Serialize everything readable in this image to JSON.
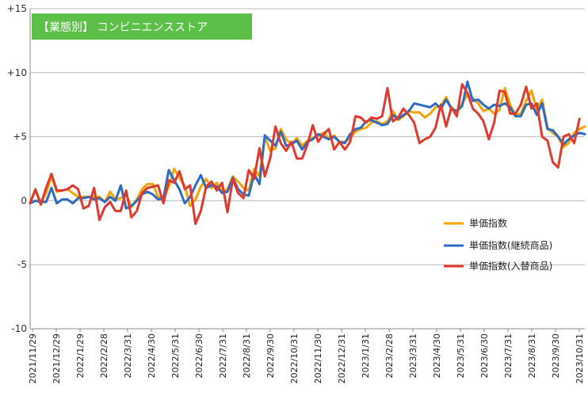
{
  "chart_data": {
    "type": "line",
    "title": "【業態別】 コンビニエンスストア",
    "title_box_color": "#5bbf48",
    "xlabel": "",
    "ylabel": "",
    "ylim": [
      -10,
      15
    ],
    "y_ticks": [
      15,
      10,
      5,
      0,
      -5,
      -10
    ],
    "y_tick_labels": [
      "+15",
      "+10",
      "+5",
      "0",
      "-5",
      "-10"
    ],
    "grid": "horizontal",
    "legend_position": "right-middle",
    "x_tick_labels": [
      "2021/11/29",
      "2021/12/29",
      "2022/1/29",
      "2022/2/28",
      "2022/3/31",
      "2022/4/30",
      "2022/5/31",
      "2022/6/30",
      "2022/7/31",
      "2022/8/31",
      "2022/9/30",
      "2022/10/31",
      "2022/11/30",
      "2022/12/31",
      "2023/1/31",
      "2023/2/28",
      "2023/3/31",
      "2023/4/30",
      "2023/5/31",
      "2023/6/30",
      "2023/7/31",
      "2023/8/31",
      "2023/9/30",
      "2023/10/31"
    ],
    "series": [
      {
        "name": "単価指数",
        "color": "#f5a400",
        "values": [
          -0.1,
          0.8,
          -0.2,
          0.6,
          1.9,
          0.7,
          0.8,
          0.9,
          0.6,
          0.3,
          0.3,
          0.3,
          0.3,
          0.3,
          -0.1,
          0.7,
          0.1,
          0.2,
          0.5,
          -0.5,
          0.1,
          0.9,
          1.3,
          1.3,
          0.3,
          0.2,
          1.1,
          2.5,
          1.8,
          1.1,
          -0.4,
          0.1,
          1.1,
          1.7,
          1.0,
          1.4,
          0.7,
          0.9,
          1.9,
          1.5,
          1.0,
          0.8,
          2.5,
          1.9,
          5.0,
          3.9,
          4.1,
          5.6,
          4.8,
          4.4,
          4.9,
          4.3,
          4.7,
          4.9,
          5.1,
          5.3,
          4.9,
          5.1,
          4.6,
          4.6,
          4.9,
          5.4,
          5.6,
          5.7,
          6.1,
          6.2,
          6.0,
          6.2,
          7.0,
          6.3,
          6.6,
          7.0,
          6.9,
          6.9,
          6.5,
          6.8,
          7.3,
          7.4,
          8.1,
          7.2,
          7.0,
          7.6,
          8.3,
          8.0,
          7.6,
          7.0,
          7.2,
          6.8,
          7.1,
          8.8,
          7.5,
          6.7,
          6.8,
          7.8,
          8.6,
          7.1,
          7.9,
          5.7,
          5.3,
          5.0,
          4.2,
          4.5,
          5.3,
          5.6,
          5.8
        ]
      },
      {
        "name": "単価指数(継続商品)",
        "color": "#2e6bc2",
        "values": [
          -0.2,
          0.0,
          -0.1,
          -0.1,
          1.0,
          -0.2,
          0.1,
          0.1,
          -0.2,
          0.2,
          0.2,
          0.3,
          0.1,
          0.2,
          -0.1,
          0.3,
          0.0,
          1.2,
          -0.6,
          -0.4,
          0.0,
          0.5,
          0.7,
          0.5,
          0.1,
          0.2,
          2.4,
          1.6,
          0.9,
          -0.2,
          0.3,
          1.2,
          2.0,
          1.0,
          1.2,
          1.1,
          0.6,
          0.7,
          1.8,
          0.9,
          0.5,
          0.4,
          2.1,
          1.3,
          5.1,
          4.7,
          4.3,
          5.4,
          4.3,
          4.4,
          4.7,
          4.0,
          4.6,
          4.8,
          5.2,
          5.0,
          4.8,
          5.0,
          4.6,
          4.5,
          5.2,
          5.6,
          5.7,
          6.2,
          6.3,
          6.1,
          5.9,
          6.0,
          6.7,
          6.4,
          6.7,
          7.0,
          7.6,
          7.5,
          7.4,
          7.3,
          7.6,
          7.2,
          7.9,
          7.2,
          7.0,
          7.4,
          9.3,
          7.8,
          7.9,
          7.5,
          7.2,
          7.5,
          7.4,
          7.6,
          7.3,
          6.6,
          6.6,
          7.5,
          7.6,
          6.7,
          7.6,
          5.6,
          5.5,
          5.0,
          4.4,
          4.8,
          5.1,
          5.3,
          5.2
        ]
      },
      {
        "name": "単価指数(入替商品)",
        "color": "#e03a2e",
        "values": [
          -0.2,
          0.9,
          -0.3,
          1.0,
          2.1,
          0.8,
          0.8,
          0.9,
          1.2,
          0.9,
          -0.6,
          -0.4,
          1.0,
          -1.5,
          -0.5,
          -0.1,
          -0.8,
          -0.8,
          0.8,
          -1.3,
          -0.8,
          0.6,
          1.0,
          1.1,
          1.2,
          -0.2,
          1.6,
          1.4,
          2.3,
          0.9,
          1.2,
          -1.8,
          -0.8,
          1.1,
          1.5,
          0.8,
          1.4,
          -0.9,
          1.7,
          0.6,
          0.2,
          2.4,
          1.7,
          4.1,
          1.9,
          3.3,
          5.8,
          4.5,
          3.9,
          4.6,
          3.3,
          3.3,
          4.4,
          5.9,
          4.6,
          5.2,
          5.6,
          4.0,
          4.6,
          4.0,
          4.6,
          6.6,
          6.5,
          6.1,
          6.5,
          6.4,
          6.6,
          8.8,
          6.2,
          6.5,
          7.2,
          6.7,
          6.1,
          4.5,
          4.8,
          5.0,
          5.7,
          7.5,
          5.8,
          7.3,
          6.6,
          9.1,
          8.4,
          7.2,
          6.8,
          6.2,
          4.8,
          6.1,
          8.6,
          8.5,
          6.8,
          6.8,
          7.5,
          8.9,
          7.2,
          7.6,
          5.0,
          4.7,
          3.0,
          2.6,
          5.0,
          5.2,
          4.5,
          6.4
        ]
      }
    ]
  }
}
